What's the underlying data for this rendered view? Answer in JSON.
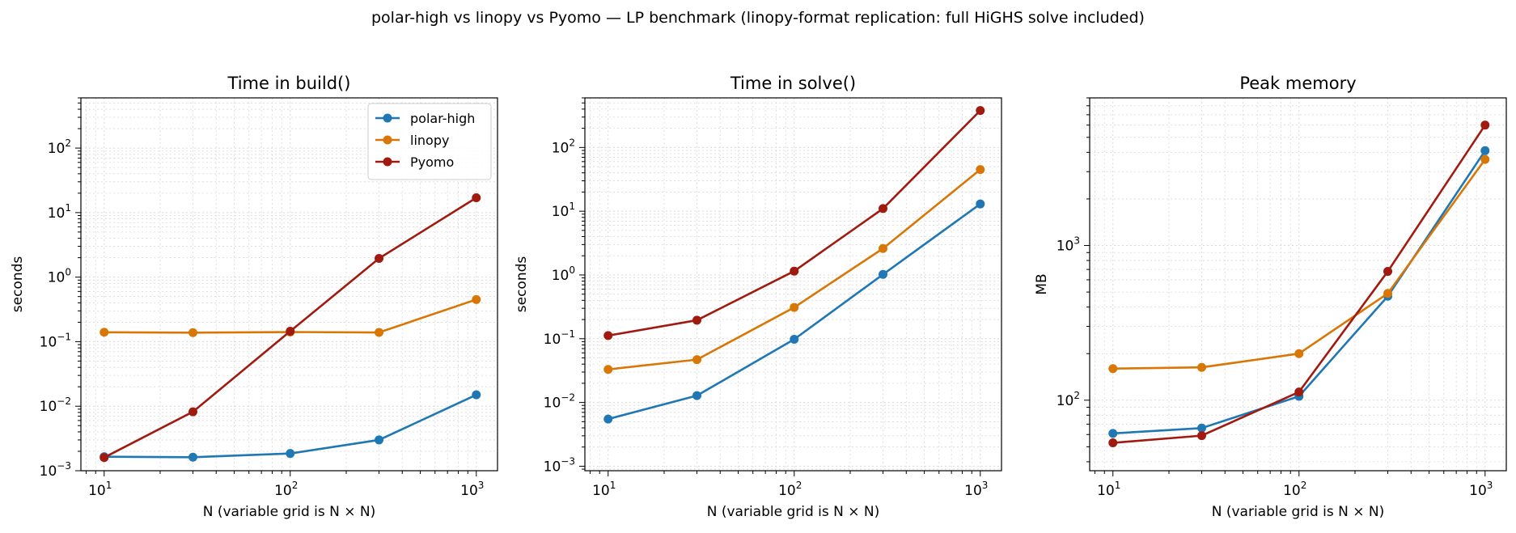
{
  "figure": {
    "suptitle": "polar-high vs linopy vs Pyomo — LP benchmark (linopy-format replication: full HiGHS solve included)"
  },
  "series_colors": {
    "polar-high": "#1f77b4",
    "linopy": "#d97706",
    "Pyomo": "#a01a10"
  },
  "chart_data": [
    {
      "type": "line",
      "title": "Time in build()",
      "xlabel": "N (variable grid is N × N)",
      "ylabel": "seconds",
      "xscale": "log",
      "yscale": "log",
      "xlim": [
        7.5,
        1300
      ],
      "ylim": [
        0.001,
        600
      ],
      "x": [
        10,
        30,
        100,
        300,
        1000
      ],
      "grid": true,
      "legend": "top-right",
      "xticks": [
        {
          "value": 10,
          "base": "10",
          "exp": "1"
        },
        {
          "value": 100,
          "base": "10",
          "exp": "2"
        },
        {
          "value": 1000,
          "base": "10",
          "exp": "3"
        }
      ],
      "yticks": [
        {
          "value": 0.001,
          "base": "10",
          "exp": "−3"
        },
        {
          "value": 0.01,
          "base": "10",
          "exp": "−2"
        },
        {
          "value": 0.1,
          "base": "10",
          "exp": "−1"
        },
        {
          "value": 1,
          "base": "10",
          "exp": "0"
        },
        {
          "value": 10,
          "base": "10",
          "exp": "1"
        },
        {
          "value": 100,
          "base": "10",
          "exp": "2"
        }
      ],
      "series": [
        {
          "name": "polar-high",
          "values": [
            0.00165,
            0.00162,
            0.00185,
            0.003,
            0.015
          ]
        },
        {
          "name": "linopy",
          "values": [
            0.14,
            0.138,
            0.141,
            0.139,
            0.45
          ]
        },
        {
          "name": "Pyomo",
          "values": [
            0.0016,
            0.0082,
            0.145,
            1.95,
            17
          ]
        }
      ]
    },
    {
      "type": "line",
      "title": "Time in solve()",
      "xlabel": "N (variable grid is N × N)",
      "ylabel": "seconds",
      "xscale": "log",
      "yscale": "log",
      "xlim": [
        7.5,
        1300
      ],
      "ylim": [
        0.00085,
        600
      ],
      "x": [
        10,
        30,
        100,
        300,
        1000
      ],
      "grid": true,
      "legend": "none",
      "xticks": [
        {
          "value": 10,
          "base": "10",
          "exp": "1"
        },
        {
          "value": 100,
          "base": "10",
          "exp": "2"
        },
        {
          "value": 1000,
          "base": "10",
          "exp": "3"
        }
      ],
      "yticks": [
        {
          "value": 0.001,
          "base": "10",
          "exp": "−3"
        },
        {
          "value": 0.01,
          "base": "10",
          "exp": "−2"
        },
        {
          "value": 0.1,
          "base": "10",
          "exp": "−1"
        },
        {
          "value": 1,
          "base": "10",
          "exp": "0"
        },
        {
          "value": 10,
          "base": "10",
          "exp": "1"
        },
        {
          "value": 100,
          "base": "10",
          "exp": "2"
        }
      ],
      "series": [
        {
          "name": "polar-high",
          "values": [
            0.0055,
            0.0128,
            0.098,
            1.02,
            13
          ]
        },
        {
          "name": "linopy",
          "values": [
            0.033,
            0.047,
            0.31,
            2.6,
            45
          ]
        },
        {
          "name": "Pyomo",
          "values": [
            0.112,
            0.195,
            1.15,
            11,
            380
          ]
        }
      ]
    },
    {
      "type": "line",
      "title": "Peak memory",
      "xlabel": "N (variable grid is N × N)",
      "ylabel": "MB",
      "xscale": "log",
      "yscale": "log",
      "xlim": [
        7.5,
        1300
      ],
      "ylim": [
        35,
        9000
      ],
      "x": [
        10,
        30,
        100,
        300,
        1000
      ],
      "grid": true,
      "legend": "none",
      "xticks": [
        {
          "value": 10,
          "base": "10",
          "exp": "1"
        },
        {
          "value": 100,
          "base": "10",
          "exp": "2"
        },
        {
          "value": 1000,
          "base": "10",
          "exp": "3"
        }
      ],
      "yticks": [
        {
          "value": 100,
          "base": "10",
          "exp": "2"
        },
        {
          "value": 1000,
          "base": "10",
          "exp": "3"
        }
      ],
      "series": [
        {
          "name": "polar-high",
          "values": [
            61,
            66,
            106,
            470,
            4100
          ]
        },
        {
          "name": "linopy",
          "values": [
            160,
            163,
            200,
            490,
            3600
          ]
        },
        {
          "name": "Pyomo",
          "values": [
            53,
            59,
            113,
            680,
            6000
          ]
        }
      ]
    }
  ]
}
